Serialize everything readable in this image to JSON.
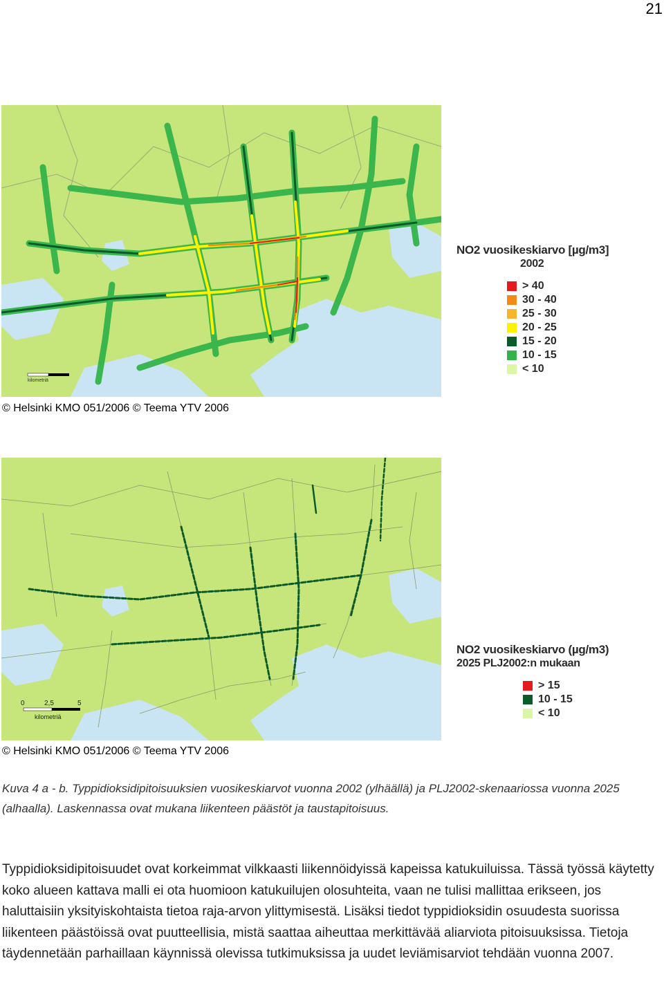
{
  "page": {
    "number": "21"
  },
  "colors": {
    "land": "#c6e57a",
    "water": "#c9e4f2",
    "road": "#8a9a6a",
    "border": "#9aaa7a"
  },
  "figure_top": {
    "legend_title": "NO2 vuosikeskiarvo [µg/m3]",
    "legend_year": "2002",
    "legend_items": [
      {
        "label": "> 40",
        "color": "#e41a1c"
      },
      {
        "label": "30 - 40",
        "color": "#f28a17"
      },
      {
        "label": "25 - 30",
        "color": "#f7b52c"
      },
      {
        "label": "20 - 25",
        "color": "#fff200"
      },
      {
        "label": "15 - 20",
        "color": "#0b5a2a"
      },
      {
        "label": "10 - 15",
        "color": "#33b44a"
      },
      {
        "label": "< 10",
        "color": "#d9f7a6"
      }
    ],
    "scale_text": "kilometriä",
    "copyright": "© Helsinki KMO 051/2006 © Teema YTV 2006"
  },
  "figure_bottom": {
    "legend_title": "NO2 vuosikeskiarvo  (µg/m3)",
    "legend_subtitle": "2025 PLJ2002:n mukaan",
    "legend_items": [
      {
        "label": "> 15",
        "color": "#e41a1c"
      },
      {
        "label": "10 - 15",
        "color": "#0b5a2a"
      },
      {
        "label": "< 10",
        "color": "#d9f7a6"
      }
    ],
    "scale_ticks": [
      "0",
      "2,5",
      "5"
    ],
    "scale_text": "kilometriä",
    "copyright": "© Helsinki KMO 051/2006 © Teema YTV 2006"
  },
  "caption": "Kuva 4 a - b. Typpidioksidipitoisuuksien vuosikeskiarvot vuonna 2002 (ylhäällä) ja PLJ2002-skenaariossa vuonna 2025 (alhaalla). Laskennassa ovat mukana liikenteen päästöt ja taustapitoisuus.",
  "body_text": "Typpidioksidipitoisuudet ovat korkeimmat vilkkaasti liikennöidyissä kapeissa katukuiluissa. Tässä työssä käytetty koko alueen kattava malli ei ota huomioon katukuilujen olosuhteita, vaan ne tulisi mallittaa erikseen, jos haluttaisiin yksityiskohtaista tietoa raja-arvon ylittymisestä. Lisäksi tiedot typpidioksidin osuudesta suorissa liikenteen päästöissä ovat puutteellisia, mistä saattaa aiheuttaa merkittävää aliarviota pitoisuuksissa. Tietoja täydennetään parhaillaan käynnissä olevissa tutkimuksissa ja uudet leviämisarviot tehdään vuonna 2007."
}
